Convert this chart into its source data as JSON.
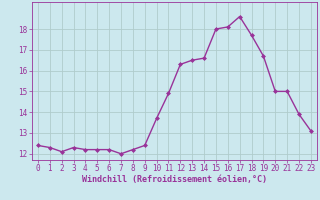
{
  "x": [
    0,
    1,
    2,
    3,
    4,
    5,
    6,
    7,
    8,
    9,
    10,
    11,
    12,
    13,
    14,
    15,
    16,
    17,
    18,
    19,
    20,
    21,
    22,
    23
  ],
  "y": [
    12.4,
    12.3,
    12.1,
    12.3,
    12.2,
    12.2,
    12.2,
    12.0,
    12.2,
    12.4,
    13.7,
    14.9,
    16.3,
    16.5,
    16.6,
    18.0,
    18.1,
    18.6,
    17.7,
    16.7,
    15.0,
    15.0,
    13.9,
    13.1
  ],
  "line_color": "#993399",
  "marker": "D",
  "marker_size": 2.0,
  "bg_color": "#cce8ee",
  "grid_color": "#b0cccc",
  "axis_color": "#993399",
  "xlabel": "Windchill (Refroidissement éolien,°C)",
  "ylim": [
    11.7,
    19.3
  ],
  "xlim": [
    -0.5,
    23.5
  ],
  "yticks": [
    12,
    13,
    14,
    15,
    16,
    17,
    18
  ],
  "xticks": [
    0,
    1,
    2,
    3,
    4,
    5,
    6,
    7,
    8,
    9,
    10,
    11,
    12,
    13,
    14,
    15,
    16,
    17,
    18,
    19,
    20,
    21,
    22,
    23
  ],
  "tick_fontsize": 5.5,
  "xlabel_fontsize": 6.0,
  "linewidth": 1.0
}
